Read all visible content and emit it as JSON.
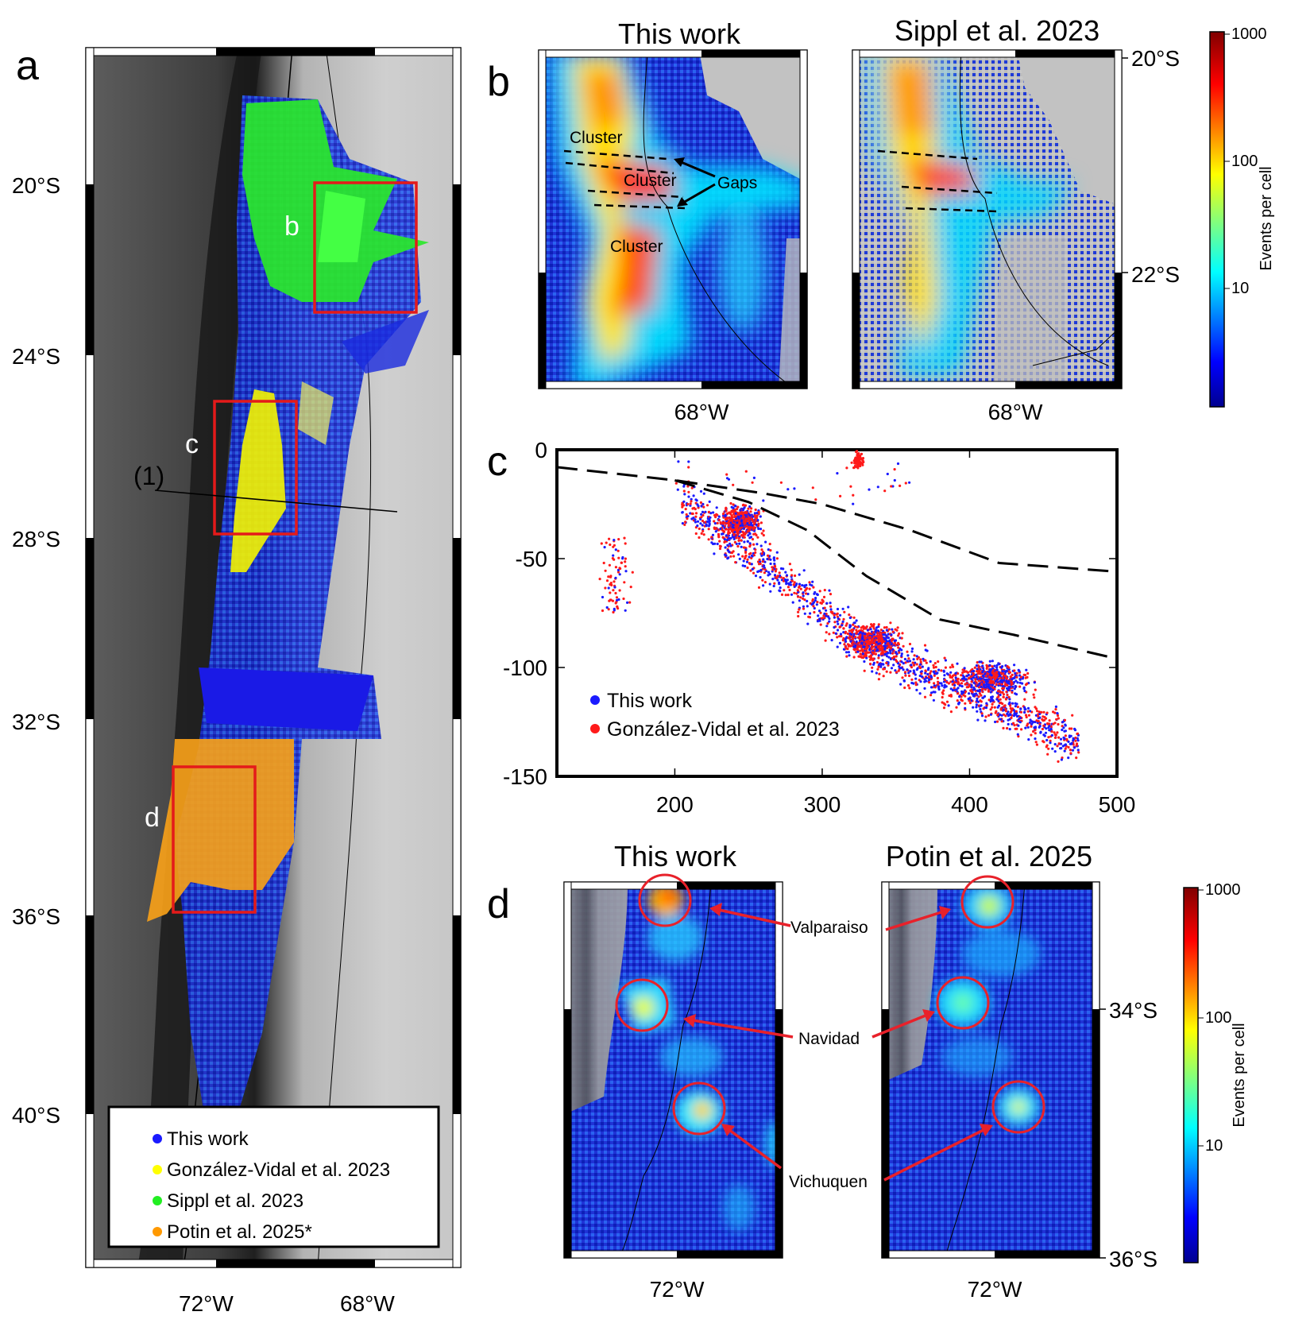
{
  "panel_a": {
    "letter": "a",
    "lat_ticks": [
      "20°S",
      "24°S",
      "28°S",
      "32°S",
      "36°S",
      "40°S"
    ],
    "lon_ticks": [
      "72°W",
      "68°W"
    ],
    "box_labels": [
      "b",
      "c",
      "d"
    ],
    "profile_label": "(1)",
    "legend": [
      {
        "label": "This work",
        "color": "#1a1aff"
      },
      {
        "label": "González-Vidal et al. 2023",
        "color": "#ffff00"
      },
      {
        "label": "Sippl et al. 2023",
        "color": "#22ee22"
      },
      {
        "label": "Potin et al. 2025*",
        "color": "#ff9900"
      }
    ]
  },
  "panel_b": {
    "letter": "b",
    "left_title": "This work",
    "right_title": "Sippl et al. 2023",
    "lat_ticks": [
      "20°S",
      "22°S"
    ],
    "lon_tick": "68°W",
    "annotations": {
      "cluster": "Cluster",
      "gaps": "Gaps"
    },
    "colorbar": {
      "ticks": [
        "1000",
        "100",
        "10"
      ],
      "label": "Events per cell"
    }
  },
  "panel_c": {
    "letter": "c",
    "legend": [
      {
        "label": "This work",
        "color": "#1a1aff"
      },
      {
        "label": "González-Vidal et al. 2023",
        "color": "#ff1a1a"
      }
    ],
    "chart_data": {
      "type": "scatter",
      "x_ticks": [
        200,
        300,
        400,
        500
      ],
      "y_ticks": [
        0,
        -50,
        -100,
        -150
      ],
      "xlim": [
        120,
        500
      ],
      "ylim": [
        -150,
        0
      ],
      "dashed_upper": [
        [
          120,
          -8
        ],
        [
          200,
          -14
        ],
        [
          260,
          -20
        ],
        [
          300,
          -25
        ],
        [
          360,
          -37
        ],
        [
          420,
          -52
        ],
        [
          500,
          -56
        ]
      ],
      "dashed_lower": [
        [
          200,
          -14
        ],
        [
          250,
          -24
        ],
        [
          290,
          -37
        ],
        [
          330,
          -58
        ],
        [
          380,
          -78
        ],
        [
          430,
          -85
        ],
        [
          500,
          -96
        ]
      ]
    }
  },
  "panel_d": {
    "letter": "d",
    "left_title": "This work",
    "right_title": "Potin et al. 2025",
    "lat_ticks": [
      "34°S",
      "36°S"
    ],
    "lon_tick": "72°W",
    "places": [
      "Valparaiso",
      "Navidad",
      "Vichuquen"
    ],
    "colorbar": {
      "ticks": [
        "1000",
        "100",
        "10"
      ],
      "label": "Events per cell"
    }
  }
}
